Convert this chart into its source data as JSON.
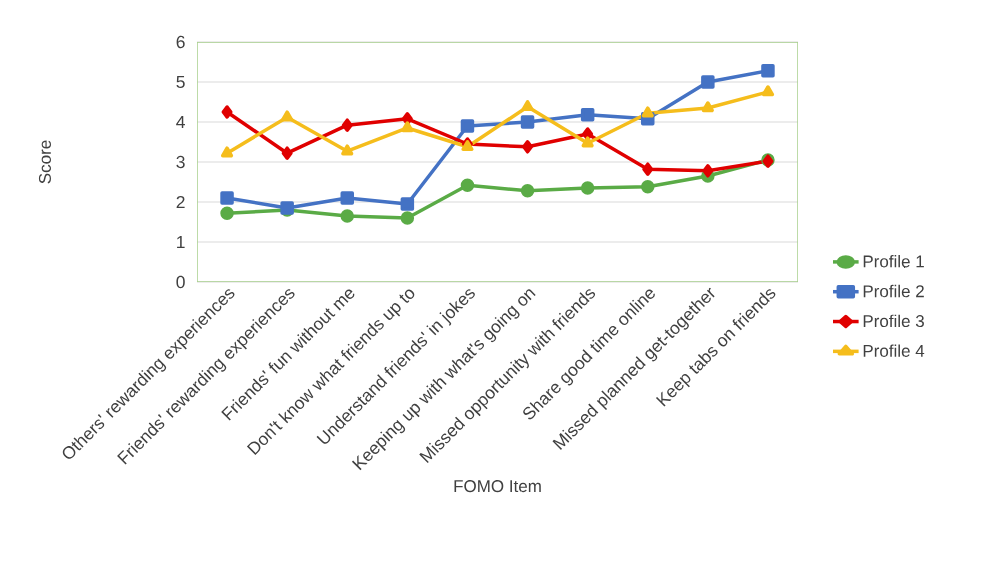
{
  "chart_data": {
    "type": "line",
    "xlabel": "FOMO Item",
    "ylabel": "Score",
    "categories": [
      "Others' rewarding experiences",
      "Friends' rewarding experiences",
      "Friends' fun without me",
      "Don't know what friends up to",
      "Understand friends' in jokes",
      "Keeping up with what's going on",
      "Missed opportunity with friends",
      "Share good time online",
      "Missed planned get-together",
      "Keep tabs on friends"
    ],
    "series": [
      {
        "name": "Profile 1",
        "color": "#5aab46",
        "marker": "circle",
        "values": [
          1.72,
          1.8,
          1.65,
          1.6,
          2.42,
          2.28,
          2.35,
          2.38,
          2.65,
          3.05
        ]
      },
      {
        "name": "Profile 2",
        "color": "#4472c4",
        "marker": "square",
        "values": [
          2.1,
          1.85,
          2.1,
          1.95,
          3.9,
          4.0,
          4.18,
          4.08,
          5.0,
          5.28
        ]
      },
      {
        "name": "Profile 3",
        "color": "#e00000",
        "marker": "diamond",
        "values": [
          4.25,
          3.22,
          3.92,
          4.08,
          3.45,
          3.38,
          3.7,
          2.82,
          2.78,
          3.02
        ]
      },
      {
        "name": "Profile 4",
        "color": "#f5bd1c",
        "marker": "triangle",
        "values": [
          3.22,
          4.12,
          3.27,
          3.85,
          3.38,
          4.38,
          3.47,
          4.22,
          4.35,
          4.75
        ]
      }
    ],
    "ylim": [
      0,
      6
    ],
    "yticks": [
      0,
      1,
      2,
      3,
      4,
      5,
      6
    ],
    "grid": "y",
    "legend": "right",
    "line_style": "solid"
  }
}
